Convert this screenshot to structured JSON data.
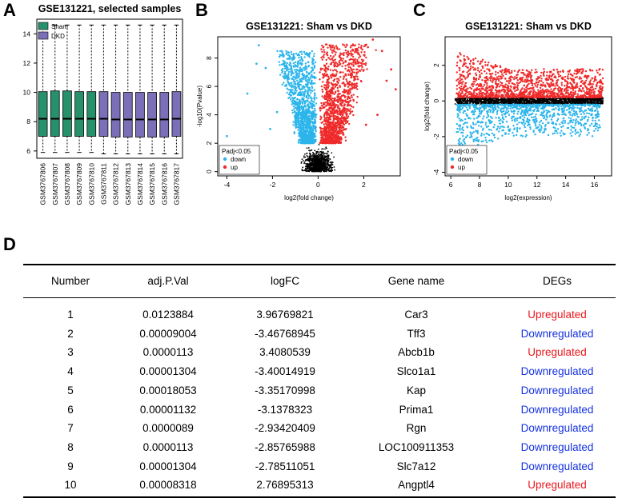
{
  "panels": {
    "A": {
      "letter": "A",
      "title": "GSE131221, selected samples"
    },
    "B": {
      "letter": "B",
      "title": "GSE131221: Sham vs DKD"
    },
    "C": {
      "letter": "C",
      "title": "GSE131221: Sham vs DKD"
    },
    "D": {
      "letter": "D"
    }
  },
  "colors": {
    "sham": "#27916b",
    "dkd": "#7b6fb8",
    "up": "#ef2a2a",
    "down": "#2cb5eb",
    "ns": "#000000",
    "table_up": "#e8161c",
    "table_down": "#1532e0"
  },
  "chart_data": [
    {
      "id": "boxplot",
      "type": "box",
      "title": "GSE131221, selected samples",
      "legend": [
        {
          "label": "Sham",
          "color": "#27916b"
        },
        {
          "label": "DKD",
          "color": "#7b6fb8"
        }
      ],
      "legend_position": "top-left",
      "ylim": [
        5.5,
        15
      ],
      "yticks": [
        6,
        8,
        10,
        12,
        14
      ],
      "samples": [
        "GSM3767806",
        "GSM3767807",
        "GSM3767808",
        "GSM3767809",
        "GSM3767810",
        "GSM3767811",
        "GSM3767812",
        "GSM3767813",
        "GSM3767814",
        "GSM3767815",
        "GSM3767816",
        "GSM3767817"
      ],
      "groups": [
        "Sham",
        "Sham",
        "Sham",
        "Sham",
        "Sham",
        "DKD",
        "DKD",
        "DKD",
        "DKD",
        "DKD",
        "DKD",
        "DKD"
      ],
      "stats": [
        {
          "min": 5.9,
          "q1": 7.0,
          "median": 8.2,
          "q3": 10.05,
          "max": 14.6
        },
        {
          "min": 5.9,
          "q1": 7.0,
          "median": 8.2,
          "q3": 10.1,
          "max": 14.6
        },
        {
          "min": 5.9,
          "q1": 7.0,
          "median": 8.2,
          "q3": 10.1,
          "max": 14.6
        },
        {
          "min": 5.9,
          "q1": 7.0,
          "median": 8.2,
          "q3": 10.05,
          "max": 14.6
        },
        {
          "min": 5.9,
          "q1": 7.0,
          "median": 8.2,
          "q3": 10.05,
          "max": 14.6
        },
        {
          "min": 5.8,
          "q1": 7.0,
          "median": 8.2,
          "q3": 10.05,
          "max": 14.6
        },
        {
          "min": 5.8,
          "q1": 6.95,
          "median": 8.15,
          "q3": 10.0,
          "max": 14.6
        },
        {
          "min": 5.8,
          "q1": 6.95,
          "median": 8.15,
          "q3": 10.0,
          "max": 14.6
        },
        {
          "min": 5.8,
          "q1": 6.95,
          "median": 8.15,
          "q3": 10.0,
          "max": 14.6
        },
        {
          "min": 5.8,
          "q1": 6.95,
          "median": 8.15,
          "q3": 10.0,
          "max": 14.6
        },
        {
          "min": 5.8,
          "q1": 6.95,
          "median": 8.15,
          "q3": 10.0,
          "max": 14.6
        },
        {
          "min": 5.8,
          "q1": 7.0,
          "median": 8.2,
          "q3": 10.05,
          "max": 14.6
        }
      ]
    },
    {
      "id": "volcano",
      "type": "scatter",
      "title": "GSE131221: Sham vs DKD",
      "xlabel": "log2(fold change)",
      "ylabel": "-log10(Pvalue)",
      "xlim": [
        -4.4,
        3.6
      ],
      "ylim": [
        -0.3,
        9.5
      ],
      "xticks": [
        -4,
        -2,
        0,
        2
      ],
      "yticks": [
        0,
        2,
        4,
        6,
        8
      ],
      "legend": {
        "title": "Padj<0.05",
        "entries": [
          {
            "label": "down",
            "color": "#2cb5eb"
          },
          {
            "label": "up",
            "color": "#ef2a2a"
          }
        ],
        "position": "bottom-left"
      },
      "series": [
        {
          "name": "not significant",
          "color": "#000000",
          "description": "dense cloud near x=0, y between 0 and 2"
        },
        {
          "name": "down",
          "color": "#2cb5eb",
          "description": "points with log2FC < 0, y between 2 and ~8.9; outliers near x=-4, y~2.5"
        },
        {
          "name": "up",
          "color": "#ef2a2a",
          "description": "points with log2FC > 0, y between 2 and ~9.3; spread up to x~3.4"
        }
      ]
    },
    {
      "id": "ma",
      "type": "scatter",
      "title": "GSE131221: Sham vs DKD",
      "xlabel": "log2(expression)",
      "ylabel": "log2(fold change)",
      "xlim": [
        5.6,
        17.2
      ],
      "ylim": [
        -4.2,
        3.6
      ],
      "xticks": [
        6,
        8,
        10,
        12,
        14,
        16
      ],
      "yticks": [
        -4,
        -2,
        0,
        2
      ],
      "legend": {
        "title": "Padj<0.05",
        "entries": [
          {
            "label": "down",
            "color": "#2cb5eb"
          },
          {
            "label": "up",
            "color": "#ef2a2a"
          }
        ],
        "position": "bottom-left"
      },
      "series": [
        {
          "name": "not significant",
          "color": "#000000",
          "description": "band at log2FC ~ 0 across expression 6.3-16.7"
        },
        {
          "name": "up",
          "color": "#ef2a2a",
          "description": "log2FC between 0.2 and ~3.4, dense near 0-1"
        },
        {
          "name": "down",
          "color": "#2cb5eb",
          "description": "log2FC between -0.2 and ~-3.9, dense near 0 to -1"
        }
      ]
    },
    {
      "id": "deg_table",
      "type": "table",
      "columns": [
        "Number",
        "adj.P.Val",
        "logFC",
        "Gene name",
        "DEGs"
      ],
      "rows": [
        {
          "number": "1",
          "adj_p": "0.0123884",
          "logfc": "3.96769821",
          "gene": "Car3",
          "deg": "Upregulated",
          "dir": "up"
        },
        {
          "number": "2",
          "adj_p": "0.00009004",
          "logfc": "-3.46768945",
          "gene": "Tff3",
          "deg": "Downregulated",
          "dir": "down"
        },
        {
          "number": "3",
          "adj_p": "0.0000113",
          "logfc": "3.4080539",
          "gene": "Abcb1b",
          "deg": "Upregulated",
          "dir": "up"
        },
        {
          "number": "4",
          "adj_p": "0.00001304",
          "logfc": "-3.40014919",
          "gene": "Slco1a1",
          "deg": "Downregulated",
          "dir": "down"
        },
        {
          "number": "5",
          "adj_p": "0.00018053",
          "logfc": "-3.35170998",
          "gene": "Kap",
          "deg": "Downregulated",
          "dir": "down"
        },
        {
          "number": "6",
          "adj_p": "0.00001132",
          "logfc": "-3.1378323",
          "gene": "Prima1",
          "deg": "Downregulated",
          "dir": "down"
        },
        {
          "number": "7",
          "adj_p": "0.0000089",
          "logfc": "-2.93420409",
          "gene": "Rgn",
          "deg": "Downregulated",
          "dir": "down"
        },
        {
          "number": "8",
          "adj_p": "0.0000113",
          "logfc": "-2.85765988",
          "gene": "LOC100911353",
          "deg": "Downregulated",
          "dir": "down"
        },
        {
          "number": "9",
          "adj_p": "0.00001304",
          "logfc": "-2.78511051",
          "gene": "Slc7a12",
          "deg": "Downregulated",
          "dir": "down"
        },
        {
          "number": "10",
          "adj_p": "0.00008318",
          "logfc": "2.76895313",
          "gene": "Angptl4",
          "deg": "Upregulated",
          "dir": "up"
        }
      ]
    }
  ]
}
